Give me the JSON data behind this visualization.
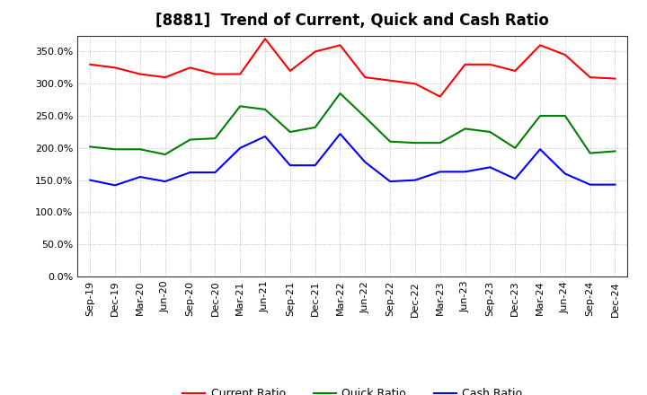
{
  "title": "[8881]  Trend of Current, Quick and Cash Ratio",
  "x_labels": [
    "Sep-19",
    "Dec-19",
    "Mar-20",
    "Jun-20",
    "Sep-20",
    "Dec-20",
    "Mar-21",
    "Jun-21",
    "Sep-21",
    "Dec-21",
    "Mar-22",
    "Jun-22",
    "Sep-22",
    "Dec-22",
    "Mar-23",
    "Jun-23",
    "Sep-23",
    "Dec-23",
    "Mar-24",
    "Jun-24",
    "Sep-24",
    "Dec-24"
  ],
  "current_ratio": [
    330,
    325,
    315,
    310,
    325,
    315,
    315,
    370,
    320,
    350,
    360,
    310,
    305,
    300,
    280,
    330,
    330,
    320,
    360,
    345,
    310,
    308
  ],
  "quick_ratio": [
    202,
    198,
    198,
    190,
    213,
    215,
    265,
    260,
    225,
    232,
    285,
    248,
    210,
    208,
    208,
    230,
    225,
    200,
    250,
    250,
    192,
    195
  ],
  "cash_ratio": [
    150,
    142,
    155,
    148,
    162,
    162,
    200,
    218,
    173,
    173,
    222,
    178,
    148,
    150,
    163,
    163,
    170,
    152,
    198,
    160,
    143,
    143
  ],
  "ylim": [
    0,
    375
  ],
  "yticks": [
    0,
    50,
    100,
    150,
    200,
    250,
    300,
    350
  ],
  "current_color": "#ff0000",
  "quick_color": "#008000",
  "cash_color": "#0000ff",
  "background_color": "#ffffff",
  "grid_color": "#b0b0b0",
  "title_fontsize": 12,
  "legend_fontsize": 9,
  "tick_fontsize": 8
}
